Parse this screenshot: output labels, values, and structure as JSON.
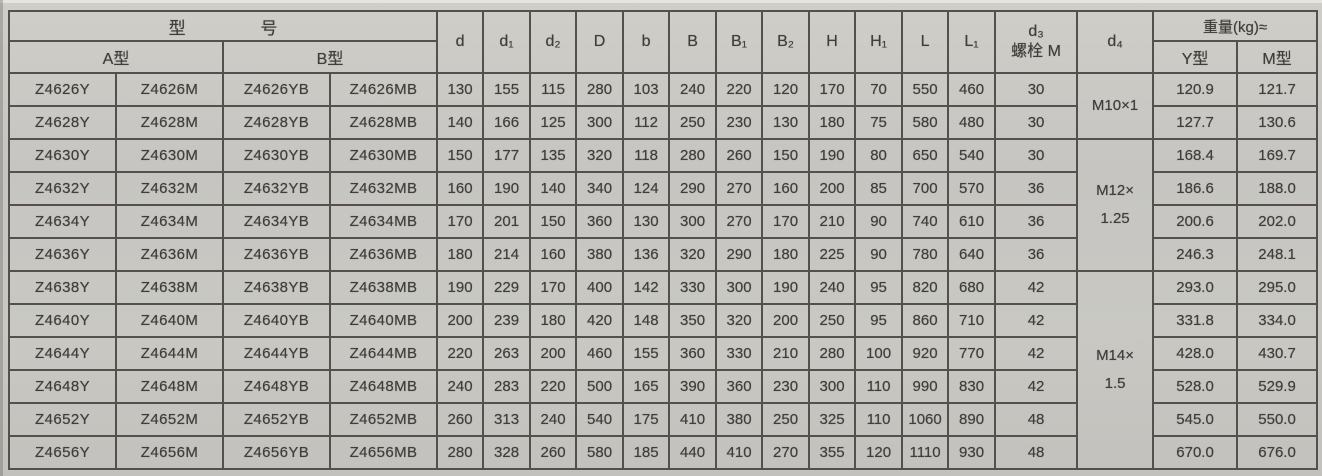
{
  "table": {
    "header": {
      "model_group": "型 号",
      "model_a": "A型",
      "model_b": "B型",
      "dims": [
        "d",
        "d₁",
        "d₂",
        "D",
        "b",
        "B",
        "B₁",
        "B₂",
        "H",
        "H₁",
        "L",
        "L₁"
      ],
      "d3_line1": "d₃",
      "d3_line2": "螺栓 M",
      "d4": "d₄",
      "weight_group": "重量(kg)≈",
      "weight_y": "Y型",
      "weight_m": "M型"
    },
    "d4_groups": [
      {
        "label": "M10×1",
        "span": 2
      },
      {
        "label": "M12×\n1.25",
        "span": 4
      },
      {
        "label": "M14×\n1.5",
        "span": 6
      }
    ],
    "rows": [
      {
        "models": [
          "Z4626Y",
          "Z4626M",
          "Z4626YB",
          "Z4626MB"
        ],
        "dims": [
          130,
          155,
          115,
          280,
          103,
          240,
          220,
          120,
          170,
          70,
          550,
          460
        ],
        "d3": 30,
        "weight_y": "120.9",
        "weight_m": "121.7"
      },
      {
        "models": [
          "Z4628Y",
          "Z4628M",
          "Z4628YB",
          "Z4628MB"
        ],
        "dims": [
          140,
          166,
          125,
          300,
          112,
          250,
          230,
          130,
          180,
          75,
          580,
          480
        ],
        "d3": 30,
        "weight_y": "127.7",
        "weight_m": "130.6"
      },
      {
        "models": [
          "Z4630Y",
          "Z4630M",
          "Z4630YB",
          "Z4630MB"
        ],
        "dims": [
          150,
          177,
          135,
          320,
          118,
          280,
          260,
          150,
          190,
          80,
          650,
          540
        ],
        "d3": 30,
        "weight_y": "168.4",
        "weight_m": "169.7"
      },
      {
        "models": [
          "Z4632Y",
          "Z4632M",
          "Z4632YB",
          "Z4632MB"
        ],
        "dims": [
          160,
          190,
          140,
          340,
          124,
          290,
          270,
          160,
          200,
          85,
          700,
          570
        ],
        "d3": 36,
        "weight_y": "186.6",
        "weight_m": "188.0"
      },
      {
        "models": [
          "Z4634Y",
          "Z4634M",
          "Z4634YB",
          "Z4634MB"
        ],
        "dims": [
          170,
          201,
          150,
          360,
          130,
          300,
          270,
          170,
          210,
          90,
          740,
          610
        ],
        "d3": 36,
        "weight_y": "200.6",
        "weight_m": "202.0"
      },
      {
        "models": [
          "Z4636Y",
          "Z4636M",
          "Z4636YB",
          "Z4636MB"
        ],
        "dims": [
          180,
          214,
          160,
          380,
          136,
          320,
          290,
          180,
          225,
          90,
          780,
          640
        ],
        "d3": 36,
        "weight_y": "246.3",
        "weight_m": "248.1"
      },
      {
        "models": [
          "Z4638Y",
          "Z4638M",
          "Z4638YB",
          "Z4638MB"
        ],
        "dims": [
          190,
          229,
          170,
          400,
          142,
          330,
          300,
          190,
          240,
          95,
          820,
          680
        ],
        "d3": 42,
        "weight_y": "293.0",
        "weight_m": "295.0"
      },
      {
        "models": [
          "Z4640Y",
          "Z4640M",
          "Z4640YB",
          "Z4640MB"
        ],
        "dims": [
          200,
          239,
          180,
          420,
          148,
          350,
          320,
          200,
          250,
          95,
          860,
          710
        ],
        "d3": 42,
        "weight_y": "331.8",
        "weight_m": "334.0"
      },
      {
        "models": [
          "Z4644Y",
          "Z4644M",
          "Z4644YB",
          "Z4644MB"
        ],
        "dims": [
          220,
          263,
          200,
          460,
          155,
          360,
          330,
          210,
          280,
          100,
          920,
          770
        ],
        "d3": 42,
        "weight_y": "428.0",
        "weight_m": "430.7"
      },
      {
        "models": [
          "Z4648Y",
          "Z4648M",
          "Z4648YB",
          "Z4648MB"
        ],
        "dims": [
          240,
          283,
          220,
          500,
          165,
          390,
          360,
          230,
          300,
          110,
          990,
          830
        ],
        "d3": 42,
        "weight_y": "528.0",
        "weight_m": "529.9"
      },
      {
        "models": [
          "Z4652Y",
          "Z4652M",
          "Z4652YB",
          "Z4652MB"
        ],
        "dims": [
          260,
          313,
          240,
          540,
          175,
          410,
          380,
          250,
          325,
          110,
          1060,
          890
        ],
        "d3": 48,
        "weight_y": "545.0",
        "weight_m": "550.0"
      },
      {
        "models": [
          "Z4656Y",
          "Z4656M",
          "Z4656YB",
          "Z4656MB"
        ],
        "dims": [
          280,
          328,
          260,
          580,
          185,
          440,
          410,
          270,
          355,
          120,
          1110,
          930
        ],
        "d3": 48,
        "weight_y": "670.0",
        "weight_m": "676.0"
      }
    ]
  }
}
